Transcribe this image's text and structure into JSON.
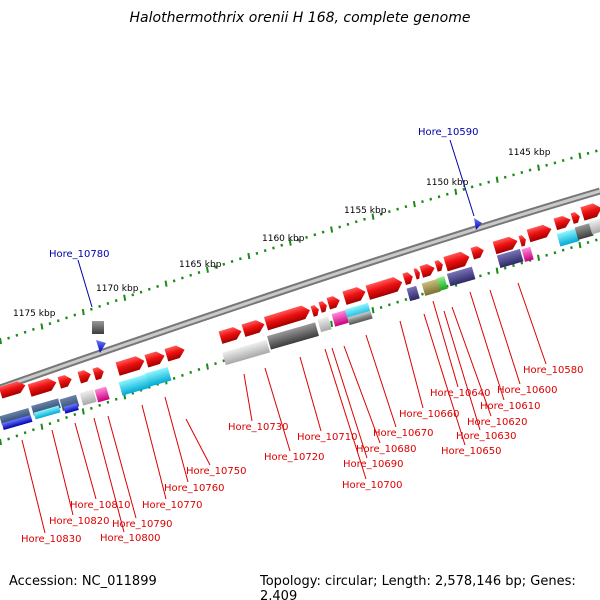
{
  "header": {
    "title": "Halothermothrix orenii H 168, complete genome"
  },
  "footer": {
    "accession": "Accession: NC_011899",
    "summary": "Topology: circular; Length: 2,578,146 bp; Genes: 2,409"
  },
  "colors": {
    "backbone": "#9e9e9e",
    "tick_minor": "#1a8a1a",
    "forward_cds": "#ee1111",
    "feature_blue": "#1111ee",
    "label_red": "#dd0000",
    "label_blue": "#0000aa"
  },
  "scale_ticks": [
    "1145 kbp",
    "1150 kbp",
    "1155 kbp",
    "1160 kbp",
    "1165 kbp",
    "1170 kbp",
    "1175 kbp"
  ],
  "gene_labels": {
    "Hore_10590": "Hore_10590",
    "Hore_10780": "Hore_10780",
    "Hore_10580": "Hore_10580",
    "Hore_10600": "Hore_10600",
    "Hore_10610": "Hore_10610",
    "Hore_10620": "Hore_10620",
    "Hore_10630": "Hore_10630",
    "Hore_10640": "Hore_10640",
    "Hore_10650": "Hore_10650",
    "Hore_10660": "Hore_10660",
    "Hore_10670": "Hore_10670",
    "Hore_10680": "Hore_10680",
    "Hore_10690": "Hore_10690",
    "Hore_10700": "Hore_10700",
    "Hore_10710": "Hore_10710",
    "Hore_10720": "Hore_10720",
    "Hore_10730": "Hore_10730",
    "Hore_10750": "Hore_10750",
    "Hore_10760": "Hore_10760",
    "Hore_10770": "Hore_10770",
    "Hore_10790": "Hore_10790",
    "Hore_10800": "Hore_10800",
    "Hore_10810": "Hore_10810",
    "Hore_10820": "Hore_10820",
    "Hore_10830": "Hore_10830"
  }
}
